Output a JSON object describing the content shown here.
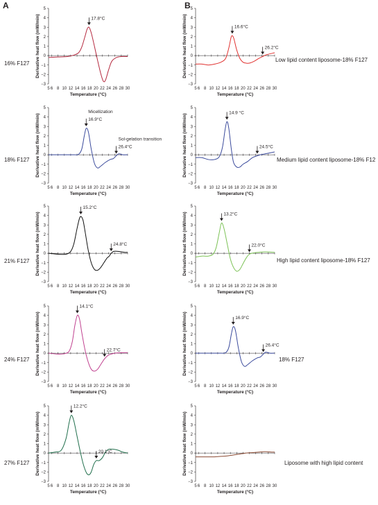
{
  "panel_letters": [
    "A",
    "B"
  ],
  "side_labels": {
    "A": [
      "16% F127",
      "18% F127",
      "21% F127",
      "24% F127",
      "27% F127"
    ],
    "B": [
      "Low lipid content liposome-18% F127",
      "Medium lipid content liposome-18% F12",
      "High lipid content liposome-18% F127",
      "18% F127",
      "Liposome with high lipid content"
    ]
  },
  "chart_data": [
    {
      "type": "line",
      "panel": "A",
      "row": 0,
      "color": "#b5293f",
      "xlabel": "Temperature (°C)",
      "ylabel": "Derivative heat flow (mW/min)",
      "xlim": [
        5,
        30
      ],
      "ylim": [
        -3,
        5
      ],
      "xticks": [
        "5",
        "6",
        "8",
        "10",
        "12",
        "14",
        "16",
        "18",
        "20",
        "22",
        "24",
        "26",
        "28",
        "30"
      ],
      "yticks": [
        "5",
        "4",
        "3",
        "2",
        "1",
        "0",
        "−1",
        "−2",
        "−3"
      ],
      "x": [
        5,
        8,
        11,
        13,
        14.5,
        15.5,
        16.5,
        17.2,
        17.8,
        18.5,
        19.5,
        20.5,
        21.5,
        22.3,
        23,
        24,
        25,
        26.5,
        28,
        30
      ],
      "y": [
        -0.2,
        -0.15,
        -0.1,
        0.05,
        0.3,
        0.9,
        2.0,
        2.8,
        3.0,
        2.4,
        1.0,
        -0.5,
        -1.9,
        -2.7,
        -2.6,
        -1.5,
        -0.6,
        -0.2,
        -0.1,
        -0.1
      ],
      "annotations": [
        {
          "text": "17.8°C",
          "x": 17.8,
          "y": 3.0
        }
      ]
    },
    {
      "type": "line",
      "panel": "A",
      "row": 1,
      "color": "#3a4a9c",
      "xlabel": "Temperature (°C)",
      "ylabel": "Derivative heat flow (mW/min)",
      "xlim": [
        5,
        30
      ],
      "ylim": [
        -3,
        5
      ],
      "xticks": [
        "5",
        "6",
        "8",
        "10",
        "12",
        "14",
        "16",
        "18",
        "20",
        "22",
        "24",
        "26",
        "28",
        "30"
      ],
      "yticks": [
        "5",
        "4",
        "3",
        "2",
        "1",
        "0",
        "−1",
        "−2",
        "−3"
      ],
      "x": [
        5,
        8,
        11,
        13,
        14.5,
        15.5,
        16.3,
        16.9,
        17.6,
        18.5,
        19.5,
        20.5,
        21.5,
        23,
        24.5,
        25.5,
        26.4,
        27.2,
        28.5,
        30
      ],
      "y": [
        0,
        0,
        0,
        0,
        0.05,
        0.6,
        2.0,
        2.8,
        2.4,
        0.6,
        -0.9,
        -1.4,
        -1.2,
        -0.8,
        -0.5,
        -0.4,
        -0.1,
        0.1,
        0.0,
        0.0
      ],
      "annotations": [
        {
          "text": "Micellization",
          "x": 16.9,
          "y": 2.8
        },
        {
          "text": "16.9°C",
          "x": 16.9,
          "y": 2.8
        },
        {
          "text": "Sol-gelation transition",
          "x": 26.4,
          "y": -0.1
        },
        {
          "text": "26.4°C",
          "x": 26.4,
          "y": -0.1
        }
      ]
    },
    {
      "type": "line",
      "panel": "A",
      "row": 2,
      "color": "#111111",
      "xlabel": "Temperature (°C)",
      "ylabel": "Derivative heat flow (mW/min)",
      "xlim": [
        5,
        30
      ],
      "ylim": [
        -3,
        5
      ],
      "xticks": [
        "5",
        "6",
        "8",
        "10",
        "12",
        "14",
        "16",
        "18",
        "20",
        "22",
        "24",
        "26",
        "28",
        "30"
      ],
      "yticks": [
        "5",
        "4",
        "3",
        "2",
        "1",
        "0",
        "−1",
        "−2",
        "−3"
      ],
      "x": [
        5,
        8,
        10.5,
        12,
        13,
        14,
        14.7,
        15.2,
        15.9,
        16.6,
        17.5,
        18.5,
        19.5,
        20.5,
        21.5,
        22.5,
        23.5,
        24.2,
        24.8,
        25.6,
        27,
        29,
        30
      ],
      "y": [
        0,
        -0.1,
        -0.1,
        0.2,
        1.0,
        2.6,
        3.6,
        3.9,
        3.5,
        2.2,
        0.4,
        -1.0,
        -1.7,
        -1.8,
        -1.5,
        -1.0,
        -0.5,
        -0.3,
        0.0,
        0.2,
        0.2,
        0.1,
        0.1
      ],
      "annotations": [
        {
          "text": "15.2°C",
          "x": 15.2,
          "y": 3.9
        },
        {
          "text": "24.8°C",
          "x": 24.8,
          "y": 0.0
        }
      ]
    },
    {
      "type": "line",
      "panel": "A",
      "row": 3,
      "color": "#c0408f",
      "xlabel": "Temperature (°C)",
      "ylabel": "Derivative heat flow (mW/min)",
      "xlim": [
        5,
        30
      ],
      "ylim": [
        -3,
        5
      ],
      "xticks": [
        "5",
        "6",
        "8",
        "10",
        "12",
        "14",
        "16",
        "18",
        "20",
        "22",
        "24",
        "26",
        "28",
        "30"
      ],
      "yticks": [
        "5",
        "4",
        "3",
        "2",
        "1",
        "0",
        "−1",
        "−2",
        "−3"
      ],
      "x": [
        5,
        8,
        10,
        11.5,
        12.5,
        13.3,
        14.1,
        14.8,
        15.5,
        16.5,
        17.5,
        18.5,
        19.5,
        20.5,
        21.5,
        22.7,
        24,
        26,
        28,
        30
      ],
      "y": [
        0,
        -0.1,
        -0.05,
        0.2,
        1.2,
        2.9,
        4.0,
        3.6,
        2.2,
        0.4,
        -0.9,
        -1.7,
        -1.9,
        -1.7,
        -1.2,
        -0.6,
        -0.2,
        0.0,
        0.05,
        0.05
      ],
      "annotations": [
        {
          "text": "14.1°C",
          "x": 14.1,
          "y": 4.0
        },
        {
          "text": "22.7°C",
          "x": 22.7,
          "y": -0.6
        }
      ]
    },
    {
      "type": "line",
      "panel": "A",
      "row": 4,
      "color": "#1f6e4b",
      "xlabel": "Temperature (°C)",
      "ylabel": "Derivative heat flow (mW/min)",
      "xlim": [
        5,
        30
      ],
      "ylim": [
        -3,
        5
      ],
      "xticks": [
        "5",
        "6",
        "8",
        "10",
        "12",
        "14",
        "16",
        "18",
        "20",
        "22",
        "24",
        "26",
        "28",
        "30"
      ],
      "yticks": [
        "5",
        "4",
        "3",
        "2",
        "1",
        "0",
        "−1",
        "−2",
        "−3"
      ],
      "x": [
        5,
        7,
        9,
        10.5,
        11.5,
        12.2,
        13,
        14,
        15,
        16,
        17,
        17.8,
        18.5,
        19.3,
        20.1,
        21,
        22,
        23,
        24,
        25.5,
        27,
        28.5,
        30
      ],
      "y": [
        0,
        0.1,
        0.3,
        1.5,
        3.2,
        4.0,
        3.4,
        1.8,
        0.2,
        -1.2,
        -2.1,
        -2.3,
        -2.0,
        -1.2,
        -0.8,
        -0.8,
        -0.5,
        0.1,
        0.4,
        0.4,
        0.3,
        0.1,
        0.0
      ],
      "annotations": [
        {
          "text": "12.2°C",
          "x": 12.2,
          "y": 4.0
        },
        {
          "text": "20.1°C",
          "x": 20.1,
          "y": -0.8
        }
      ]
    },
    {
      "type": "line",
      "panel": "B",
      "row": 0,
      "color": "#e0312f",
      "xlabel": "Temperature (°C)",
      "ylabel": "Derivative heat flow (mW/min)",
      "xlim": [
        5,
        30
      ],
      "ylim": [
        -3,
        5
      ],
      "xticks": [
        "5",
        "6",
        "8",
        "10",
        "12",
        "14",
        "16",
        "18",
        "20",
        "22",
        "24",
        "26",
        "28",
        "30"
      ],
      "yticks": [
        "5",
        "4",
        "3",
        "2",
        "1",
        "0",
        "−1",
        "−2",
        "−3"
      ],
      "x": [
        5,
        7,
        9,
        11,
        13,
        14.5,
        15.5,
        16.2,
        16.6,
        17.1,
        18,
        19,
        20,
        21,
        22,
        23.5,
        25,
        26.2,
        27.5,
        30
      ],
      "y": [
        -0.9,
        -0.9,
        -1.0,
        -0.9,
        -0.7,
        -0.3,
        0.8,
        1.9,
        2.1,
        1.8,
        0.6,
        -0.3,
        -0.7,
        -0.8,
        -0.8,
        -0.6,
        -0.3,
        -0.1,
        0.1,
        0.3
      ],
      "annotations": [
        {
          "text": "16.6°C",
          "x": 16.6,
          "y": 2.1
        },
        {
          "text": "26.2°C",
          "x": 26.2,
          "y": -0.1
        }
      ]
    },
    {
      "type": "line",
      "panel": "B",
      "row": 1,
      "color": "#3a4a9c",
      "xlabel": "Temperature (°C)",
      "ylabel": "Derivative heat flow (mW/min)",
      "xlim": [
        5,
        30
      ],
      "ylim": [
        -3,
        5
      ],
      "xticks": [
        "5",
        "6",
        "8",
        "10",
        "12",
        "14",
        "16",
        "18",
        "20",
        "22",
        "24",
        "26",
        "28",
        "30"
      ],
      "yticks": [
        "5",
        "4",
        "3",
        "2",
        "1",
        "0",
        "−1",
        "−2",
        "−3"
      ],
      "x": [
        5,
        7,
        9,
        11,
        12.5,
        13.5,
        14.3,
        14.9,
        15.5,
        16.3,
        17,
        18,
        19,
        20,
        21.5,
        23,
        24.5,
        25.5,
        27,
        30
      ],
      "y": [
        -0.3,
        -0.3,
        -0.5,
        -0.5,
        -0.2,
        0.8,
        2.6,
        3.5,
        2.8,
        0.6,
        -0.8,
        -1.3,
        -1.3,
        -1.0,
        -0.7,
        -0.3,
        -0.1,
        0.0,
        0.1,
        0.3
      ],
      "annotations": [
        {
          "text": "14.9 °C",
          "x": 14.9,
          "y": 3.5
        },
        {
          "text": "24.5°C",
          "x": 24.5,
          "y": -0.1
        }
      ]
    },
    {
      "type": "line",
      "panel": "B",
      "row": 2,
      "color": "#7cc256",
      "xlabel": "Temperature (°C)",
      "ylabel": "Derivative heat flow (mW/min)",
      "xlim": [
        5,
        30
      ],
      "ylim": [
        -3,
        5
      ],
      "xticks": [
        "5",
        "6",
        "8",
        "10",
        "12",
        "14",
        "16",
        "18",
        "20",
        "22",
        "24",
        "26",
        "28",
        "30"
      ],
      "yticks": [
        "5",
        "4",
        "3",
        "2",
        "1",
        "0",
        "−1",
        "−2",
        "−3"
      ],
      "x": [
        5,
        7,
        9,
        10.5,
        11.5,
        12.5,
        13.2,
        14,
        15,
        16,
        17,
        18,
        19,
        20,
        21,
        22,
        23.5,
        25,
        27,
        30
      ],
      "y": [
        -0.4,
        -0.3,
        -0.3,
        -0.1,
        0.6,
        2.2,
        3.2,
        2.6,
        1.0,
        -0.6,
        -1.5,
        -1.9,
        -1.7,
        -1.1,
        -0.5,
        -0.1,
        0.05,
        0.1,
        0.15,
        0.1
      ],
      "annotations": [
        {
          "text": "13.2°C",
          "x": 13.2,
          "y": 3.2
        },
        {
          "text": "22.0°C",
          "x": 22.0,
          "y": -0.1
        }
      ]
    },
    {
      "type": "line",
      "panel": "B",
      "row": 3,
      "color": "#3a4a9c",
      "xlabel": "Temperature (°C)",
      "ylabel": "Derivative heat flow (mW/min)",
      "xlim": [
        5,
        30
      ],
      "ylim": [
        -3,
        5
      ],
      "xticks": [
        "5",
        "6",
        "8",
        "10",
        "12",
        "14",
        "16",
        "18",
        "20",
        "22",
        "24",
        "26",
        "28",
        "30"
      ],
      "yticks": [
        "5",
        "4",
        "3",
        "2",
        "1",
        "0",
        "−1",
        "−2",
        "−3"
      ],
      "x": [
        5,
        8,
        11,
        13,
        14.5,
        15.5,
        16.3,
        16.9,
        17.6,
        18.5,
        19.5,
        20.5,
        21.5,
        23,
        24.5,
        25.5,
        26.4,
        27.2,
        28.5,
        30
      ],
      "y": [
        0,
        0,
        0,
        0,
        0.05,
        0.6,
        2.0,
        2.8,
        2.4,
        0.6,
        -0.9,
        -1.4,
        -1.2,
        -0.8,
        -0.5,
        -0.4,
        -0.1,
        0.1,
        0.0,
        0.0
      ],
      "annotations": [
        {
          "text": "16.9°C",
          "x": 16.9,
          "y": 2.8
        },
        {
          "text": "26.4°C",
          "x": 26.4,
          "y": -0.1
        }
      ]
    },
    {
      "type": "line",
      "panel": "B",
      "row": 4,
      "color": "#8b4a32",
      "xlabel": "Temperature (°C)",
      "ylabel": "Derivative heat flow (mW/min)",
      "xlim": [
        5,
        30
      ],
      "ylim": [
        -3,
        5
      ],
      "xticks": [
        "5",
        "6",
        "8",
        "10",
        "12",
        "14",
        "16",
        "18",
        "20",
        "22",
        "24",
        "26",
        "28",
        "30"
      ],
      "yticks": [
        "5",
        "4",
        "3",
        "2",
        "1",
        "0",
        "−1",
        "−2",
        "−3"
      ],
      "x": [
        5,
        7,
        9,
        11,
        13,
        15,
        17,
        19,
        21,
        23,
        25,
        27,
        29,
        30
      ],
      "y": [
        -0.4,
        -0.4,
        -0.4,
        -0.4,
        -0.35,
        -0.3,
        -0.2,
        -0.1,
        0.0,
        0.05,
        0.1,
        0.15,
        0.1,
        0.1
      ],
      "annotations": []
    }
  ]
}
